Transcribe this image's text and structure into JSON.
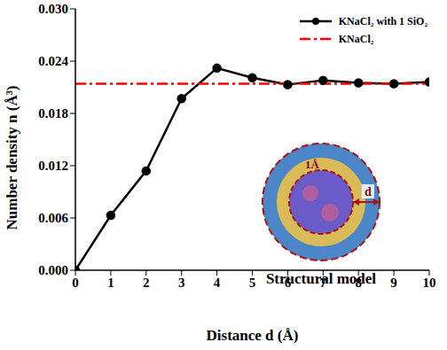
{
  "chart_data": {
    "type": "line",
    "x_label": "Distance d (Å)",
    "y_label": "Number density n (Å³)",
    "x": [
      0,
      1,
      2,
      3,
      4,
      5,
      6,
      7,
      8,
      9,
      10
    ],
    "series": [
      {
        "name": "KNaCl₂ with 1 SiO₂",
        "color": "#000000",
        "marker": "circle",
        "line_style": "solid",
        "values": [
          0,
          0.0063,
          0.0114,
          0.0197,
          0.0232,
          0.0221,
          0.0213,
          0.0218,
          0.0215,
          0.0214,
          0.0216
        ]
      },
      {
        "name": "KNaCl₂",
        "color": "#ff0000",
        "marker": "none",
        "line_style": "dashdot",
        "values": [
          0.0214,
          0.0214,
          0.0214,
          0.0214,
          0.0214,
          0.0214,
          0.0214,
          0.0214,
          0.0214,
          0.0214,
          0.0214
        ]
      }
    ],
    "xlim": [
      0,
      10
    ],
    "xticks": [
      0,
      1,
      2,
      3,
      4,
      5,
      6,
      7,
      8,
      9,
      10
    ],
    "ylim": [
      0,
      0.03
    ],
    "yticks": [
      {
        "value": 0,
        "label": "0.000"
      },
      {
        "value": 0.006,
        "label": "0.006"
      },
      {
        "value": 0.012,
        "label": "0.012"
      },
      {
        "value": 0.018,
        "label": "0.018"
      },
      {
        "value": 0.024,
        "label": "0.024"
      },
      {
        "value": 0.03,
        "label": "0.030"
      }
    ],
    "grid": false,
    "legend": "upper right",
    "annotations": [
      "Structural model",
      "1Å",
      "d"
    ]
  }
}
